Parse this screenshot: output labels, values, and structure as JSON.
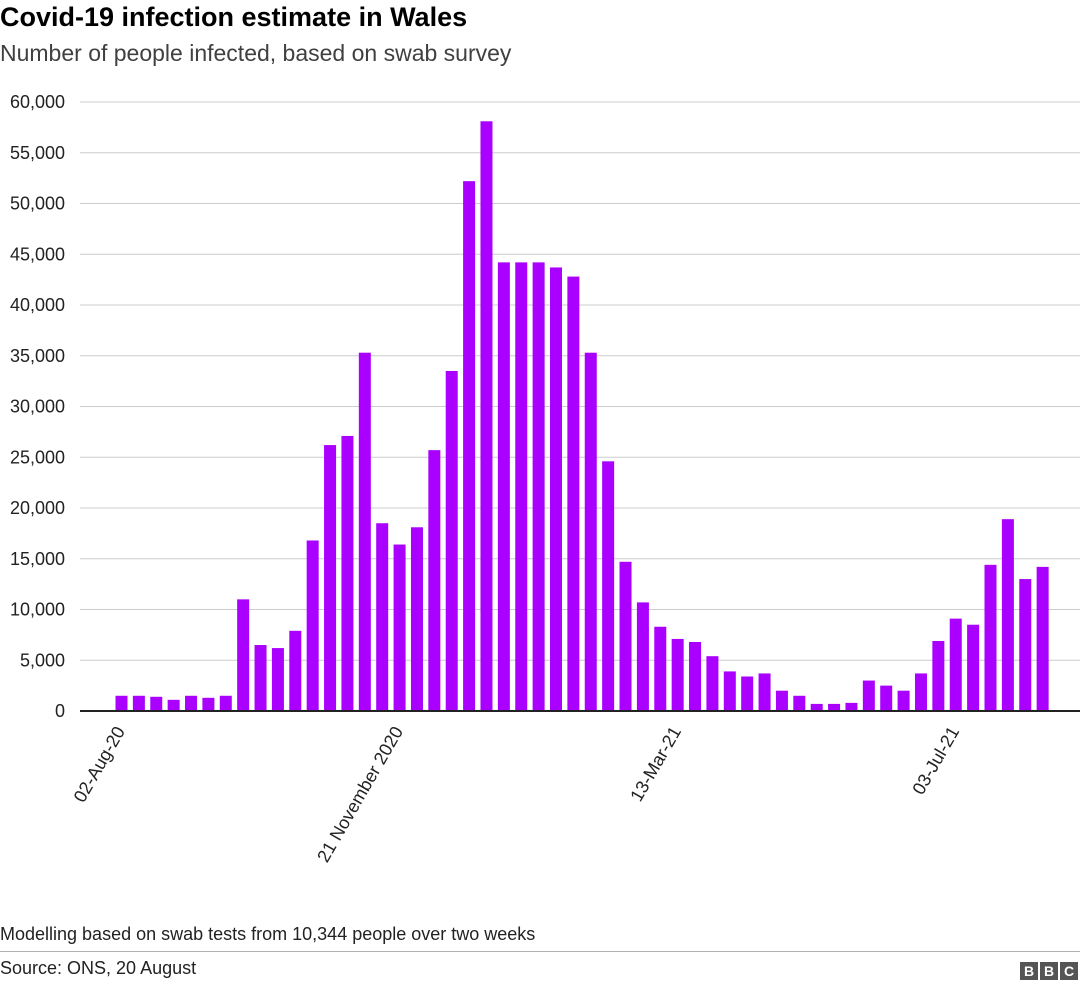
{
  "header": {
    "title": "Covid-19 infection estimate in Wales",
    "subtitle": "Number of people infected, based on swab survey"
  },
  "footer": {
    "note": "Modelling based on swab tests from 10,344 people over two weeks",
    "source": "Source: ONS, 20 August",
    "logo": [
      "B",
      "B",
      "C"
    ]
  },
  "colors": {
    "bar": "#aa00ff",
    "gridline": "#cccccc",
    "axis": "#222222"
  },
  "chart_data": {
    "type": "bar",
    "title": "Covid-19 infection estimate in Wales",
    "subtitle": "Number of people infected, based on swab survey",
    "xlabel": "",
    "ylabel": "",
    "ylim": [
      0,
      60000
    ],
    "yticks": [
      0,
      5000,
      10000,
      15000,
      20000,
      25000,
      30000,
      35000,
      40000,
      45000,
      50000,
      55000,
      60000
    ],
    "ytick_labels": [
      "0",
      "5,000",
      "10,000",
      "15,000",
      "20,000",
      "25,000",
      "30,000",
      "35,000",
      "40,000",
      "45,000",
      "50,000",
      "55,000",
      "60,000"
    ],
    "xtick_labels": [
      {
        "index": 0,
        "label": "02-Aug-20"
      },
      {
        "index": 16,
        "label": "21 November 2020"
      },
      {
        "index": 32,
        "label": "13-Mar-21"
      },
      {
        "index": 48,
        "label": "03-Jul-21"
      }
    ],
    "grid": true,
    "values": [
      1500,
      1500,
      1400,
      1100,
      1500,
      1300,
      1500,
      11000,
      6500,
      6200,
      7900,
      16800,
      26200,
      27100,
      35300,
      18500,
      16400,
      18100,
      25700,
      33500,
      52200,
      58100,
      44200,
      44200,
      44200,
      43700,
      42800,
      35300,
      24600,
      14700,
      10700,
      8300,
      7100,
      6800,
      5400,
      3900,
      3400,
      3700,
      2000,
      1500,
      700,
      700,
      800,
      3000,
      2500,
      2000,
      3700,
      6900,
      9100,
      8500,
      14400,
      18900,
      13000,
      14200
    ]
  }
}
